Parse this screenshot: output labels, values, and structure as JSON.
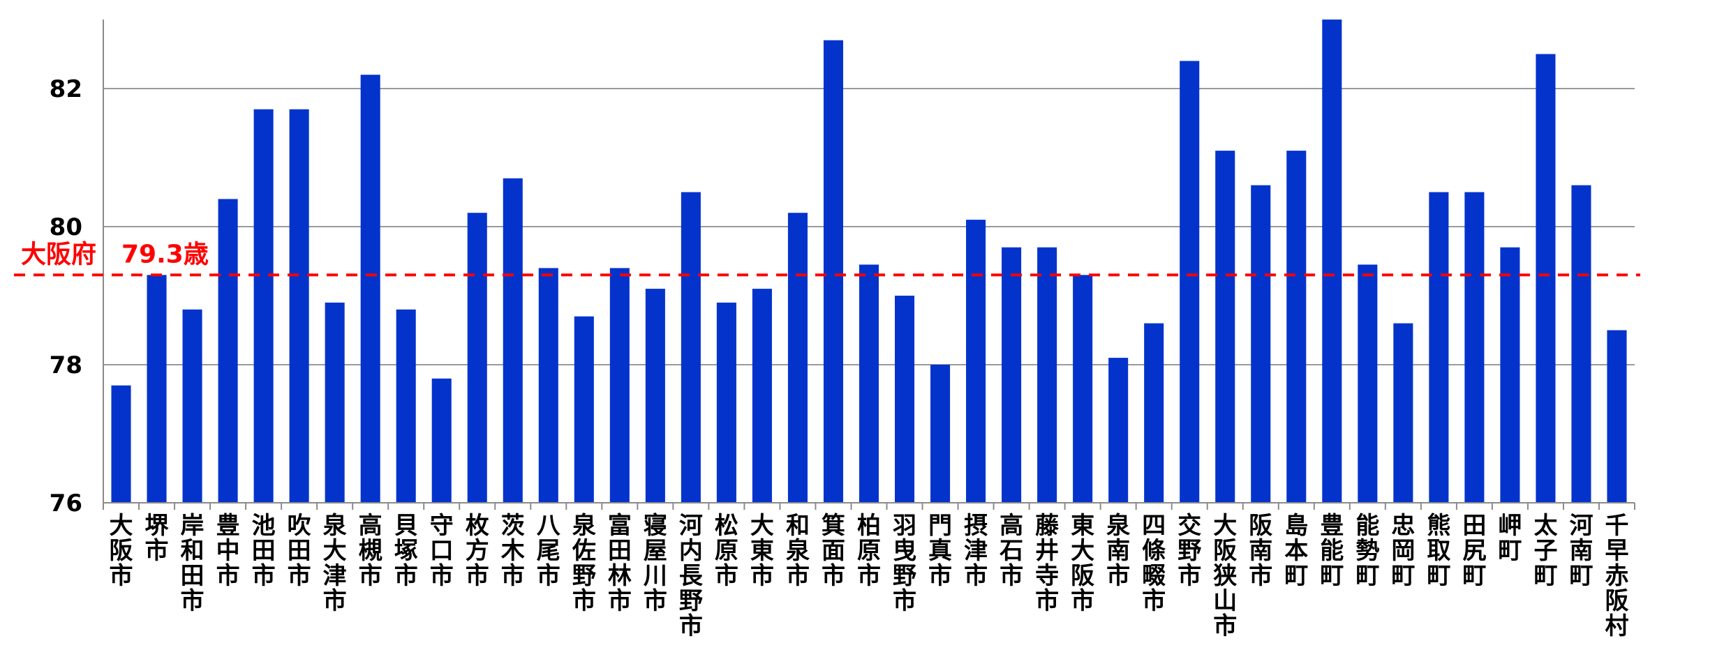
{
  "chart_data": {
    "type": "bar",
    "title": "",
    "xlabel": "",
    "ylabel": "",
    "ylim": [
      76,
      83
    ],
    "yticks": [
      76,
      78,
      80,
      82
    ],
    "grid": true,
    "bar_color": "#0433CC",
    "categories": [
      "大阪市",
      "堺市",
      "岸和田市",
      "豊中市",
      "池田市",
      "吹田市",
      "泉大津市",
      "高槻市",
      "貝塚市",
      "守口市",
      "枚方市",
      "茨木市",
      "八尾市",
      "泉佐野市",
      "富田林市",
      "寝屋川市",
      "河内長野市",
      "松原市",
      "大東市",
      "和泉市",
      "箕面市",
      "柏原市",
      "羽曳野市",
      "門真市",
      "摂津市",
      "高石市",
      "藤井寺市",
      "東大阪市",
      "泉南市",
      "四條畷市",
      "交野市",
      "大阪狭山市",
      "阪南市",
      "島本町",
      "豊能町",
      "能勢町",
      "忠岡町",
      "熊取町",
      "田尻町",
      "岬町",
      "太子町",
      "河南町",
      "千早赤阪村"
    ],
    "values": [
      77.7,
      79.3,
      78.8,
      80.4,
      81.7,
      81.7,
      78.9,
      82.2,
      78.8,
      77.8,
      80.2,
      80.7,
      79.4,
      78.7,
      79.4,
      79.1,
      80.5,
      78.9,
      79.1,
      80.2,
      82.7,
      79.45,
      79.0,
      78.0,
      80.1,
      79.7,
      79.7,
      79.3,
      78.1,
      78.6,
      82.4,
      81.1,
      80.6,
      81.1,
      83.0,
      79.45,
      78.6,
      80.5,
      80.5,
      79.7,
      82.5,
      80.6,
      78.5
    ],
    "reference_line": {
      "value": 79.3,
      "label": "大阪府　79.3歳",
      "color": "#FF0000"
    }
  }
}
